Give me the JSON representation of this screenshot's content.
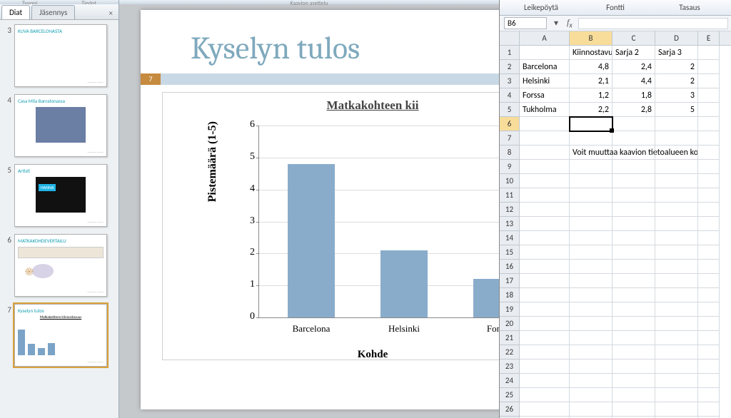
{
  "top_hints": [
    "Tyyppi",
    "Tiedot",
    "Kaavion asettelu"
  ],
  "left": {
    "tabs": {
      "active": "Diat",
      "inactive": "Jäsennys"
    },
    "thumbs": [
      {
        "n": 3,
        "title": "KUVA BARCELONASTA",
        "type": "title"
      },
      {
        "n": 4,
        "title": "Casa Mila Barcelonassa",
        "type": "img",
        "img_bg": "#6b7ea3"
      },
      {
        "n": 5,
        "title": "Artisti",
        "type": "img",
        "img_bg": "#111",
        "overlay": "HANNA",
        "overlay_bg": "#1fb5e6"
      },
      {
        "n": 6,
        "title": "MATKAKOHDEVERTAILU",
        "type": "table"
      },
      {
        "n": 7,
        "title": "Kyselyn tulos",
        "type": "chart",
        "selected": true
      }
    ]
  },
  "slide": {
    "title": "Kyselyn tulos",
    "page": "7",
    "chart": {
      "title_vis": "Matkakohteen kii",
      "ylabel": "Pistemäärä (1-5)",
      "xtitle": "Kohde",
      "ymin": 0,
      "ymax": 6,
      "ystep": 1,
      "bar_color": "#8aaccb",
      "cats": [
        "Barcelona",
        "Helsinki",
        "Forss"
      ],
      "vals": [
        4.8,
        2.1,
        1.2
      ]
    }
  },
  "excel": {
    "ribbon_groups": [
      "Leikepöytä",
      "Fontti",
      "Tasaus"
    ],
    "name_box": "B6",
    "cols": [
      {
        "h": "A",
        "w": 70
      },
      {
        "h": "B",
        "w": 60,
        "sel": true
      },
      {
        "h": "C",
        "w": 60
      },
      {
        "h": "D",
        "w": 60
      },
      {
        "h": "E",
        "w": 30
      }
    ],
    "rows": 27,
    "sel_row": 6,
    "data": {
      "1": {
        "B": "Kiinnostavuus",
        "C": "Sarja 2",
        "D": "Sarja 3"
      },
      "2": {
        "A": "Barcelona",
        "B": "4,8",
        "C": "2,4",
        "D": "2"
      },
      "3": {
        "A": "Helsinki",
        "B": "2,1",
        "C": "4,4",
        "D": "2"
      },
      "4": {
        "A": "Forssa",
        "B": "1,2",
        "C": "1,8",
        "D": "3"
      },
      "5": {
        "A": "Tukholma",
        "B": "2,2",
        "C": "2,8",
        "D": "5"
      },
      "8": {
        "B": "Voit muuttaa kaavion tietoalueen ko"
      }
    },
    "num_cols": [
      "B",
      "C",
      "D"
    ],
    "sel_cell": {
      "r": 6,
      "c": "B"
    }
  }
}
